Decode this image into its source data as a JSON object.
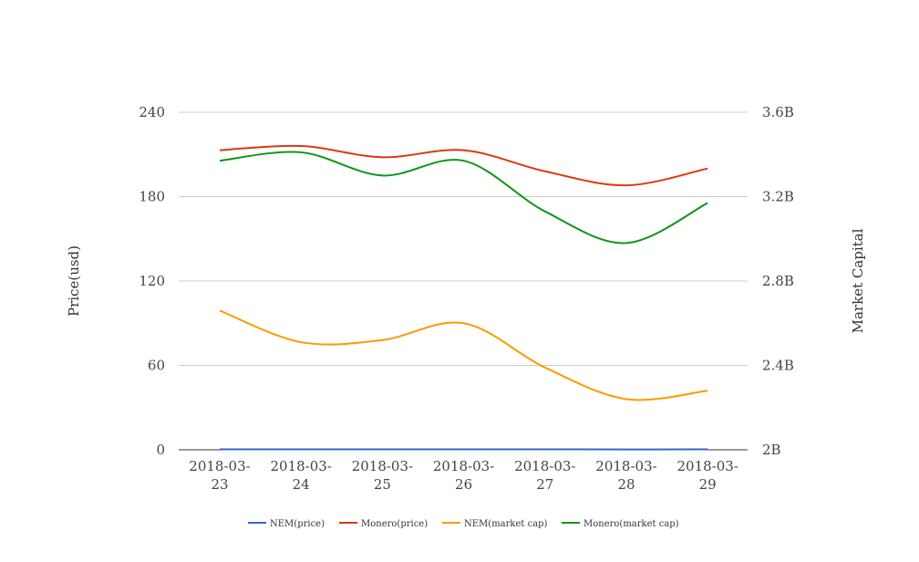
{
  "chart_data": {
    "type": "line",
    "x": [
      "2018-03-23",
      "2018-03-24",
      "2018-03-25",
      "2018-03-26",
      "2018-03-27",
      "2018-03-28",
      "2018-03-29"
    ],
    "x_tick_labels": [
      [
        "2018-03-",
        "23"
      ],
      [
        "2018-03-",
        "24"
      ],
      [
        "2018-03-",
        "25"
      ],
      [
        "2018-03-",
        "26"
      ],
      [
        "2018-03-",
        "27"
      ],
      [
        "2018-03-",
        "28"
      ],
      [
        "2018-03-",
        "29"
      ]
    ],
    "ylabel_left": "Price(usd)",
    "ylabel_right": "Market Capital",
    "ylim_left": [
      0,
      240
    ],
    "ylim_right": [
      2000000000,
      3600000000
    ],
    "yticks_left": [
      "0",
      "60",
      "120",
      "180",
      "240"
    ],
    "yticks_right": [
      "2B",
      "2.4B",
      "2.8B",
      "3.2B",
      "3.6B"
    ],
    "grid": true,
    "legend_position": "bottom",
    "series": [
      {
        "name": "NEM(price)",
        "axis": "left",
        "color": "#3366cc",
        "values": [
          0.35,
          0.34,
          0.33,
          0.34,
          0.31,
          0.28,
          0.29
        ]
      },
      {
        "name": "Monero(price)",
        "axis": "left",
        "color": "#dc3912",
        "values": [
          213,
          216,
          208,
          213,
          198,
          188,
          200
        ]
      },
      {
        "name": "NEM(market cap)",
        "axis": "right",
        "color": "#ff9900",
        "values": [
          2660000000,
          2510000000,
          2520000000,
          2600000000,
          2390000000,
          2240000000,
          2280000000
        ]
      },
      {
        "name": "Monero(market cap)",
        "axis": "right",
        "color": "#109618",
        "values": [
          3370000000,
          3410000000,
          3300000000,
          3370000000,
          3130000000,
          2980000000,
          3170000000
        ]
      }
    ]
  }
}
